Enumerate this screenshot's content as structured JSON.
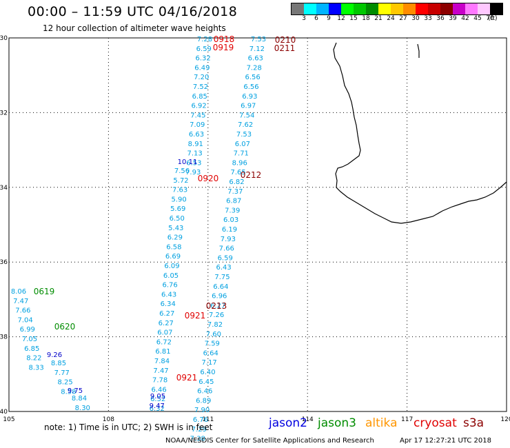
{
  "title": "00:00 – 11:59 UTC 04/16/2018",
  "subtitle": "12 hour collection of altimeter wave heights",
  "legend": {
    "labels": [
      "3",
      "6",
      "9",
      "12",
      "15",
      "18",
      "21",
      "24",
      "27",
      "30",
      "33",
      "36",
      "39",
      "42",
      "45",
      "70"
    ],
    "unit": "(ft)",
    "colors": [
      "#777777",
      "#00ffff",
      "#00b4ff",
      "#0000ff",
      "#00ff00",
      "#00c800",
      "#008c00",
      "#ffff00",
      "#ffc800",
      "#ff8c00",
      "#ff0000",
      "#c80000",
      "#8c0000",
      "#c800c8",
      "#ff78ff",
      "#ffc8ff",
      "#000000"
    ]
  },
  "axes": {
    "lat_labels": [
      "-30",
      "-32",
      "-34",
      "-36",
      "-38",
      "-40"
    ],
    "lon_labels": [
      "105",
      "108",
      "111",
      "114",
      "117",
      "120"
    ],
    "lat_values": [
      -30,
      -32,
      -34,
      -36,
      -38,
      -40
    ],
    "lon_values": [
      105,
      108,
      111,
      114,
      117,
      120
    ]
  },
  "tracks": [
    {
      "color": "#00a0e0",
      "values": [
        "7.28",
        "6.59",
        "6.32",
        "6.49",
        "7.20",
        "7.52",
        "6.85",
        "6.92",
        "7.45",
        "7.09",
        "6.63",
        "8.91",
        "7.13",
        "6.53",
        "7.93"
      ]
    },
    {
      "color": "#0000c8",
      "values": [
        "10.11"
      ]
    },
    {
      "color": "#00a0e0",
      "values": [
        "7.56",
        "5.72",
        "7.63",
        "5.90",
        "5.69",
        "6.50",
        "5.43",
        "6.29",
        "6.58",
        "6.69",
        "6.09",
        "6.05",
        "6.76",
        "6.43",
        "6.34",
        "6.27",
        "6.27",
        "6.07",
        "6.72",
        "6.81",
        "7.84",
        "7.47",
        "7.78",
        "6.46",
        "6.52",
        "6.32"
      ]
    },
    {
      "color": "#0000c8",
      "values": [
        "9.05",
        "9.47"
      ]
    },
    {
      "color": "#00a0e0",
      "values": [
        "7.53",
        "7.12",
        "6.63",
        "7.28",
        "6.56",
        "6.56",
        "6.93",
        "6.97",
        "7.54",
        "7.62",
        "7.53",
        "6.07",
        "7.71",
        "8.96",
        "7.65",
        "6.82",
        "7.37",
        "6.87",
        "7.39",
        "6.03",
        "6.19",
        "7.93",
        "7.66",
        "6.59",
        "6.43",
        "7.75",
        "6.64",
        "6.96",
        "6.27",
        "7.26",
        "7.82",
        "7.60",
        "7.59",
        "6.64",
        "7.17",
        "6.40",
        "6.45",
        "6.46",
        "6.89",
        "7.90",
        "6.76",
        "7.29",
        "7.38"
      ]
    },
    {
      "color": "#00a0e0",
      "values": [
        "8.06",
        "7.47",
        "7.66",
        "7.04",
        "6.99",
        "7.05",
        "6.85",
        "8.22",
        "8.33"
      ]
    },
    {
      "color": "#0000c8",
      "values": [
        "9.26"
      ]
    },
    {
      "color": "#00a0e0",
      "values": [
        "8.85",
        "7.77",
        "8.25",
        "8.58"
      ]
    },
    {
      "color": "#0000c8",
      "values": [
        "9.75"
      ]
    },
    {
      "color": "#00a0e0",
      "values": [
        "8.84",
        "8.30"
      ]
    }
  ],
  "time_labels": [
    {
      "text": "0918",
      "color": "#e00000"
    },
    {
      "text": "0919",
      "color": "#e00000"
    },
    {
      "text": "0920",
      "color": "#e00000"
    },
    {
      "text": "0921",
      "color": "#e00000"
    },
    {
      "text": "0921",
      "color": "#e00000"
    },
    {
      "text": "0210",
      "color": "#8c0000"
    },
    {
      "text": "0211",
      "color": "#8c0000"
    },
    {
      "text": "0212",
      "color": "#8c0000"
    },
    {
      "text": "0213",
      "color": "#8c0000"
    },
    {
      "text": "0619",
      "color": "#008c00"
    },
    {
      "text": "0620",
      "color": "#008c00"
    }
  ],
  "note": "note: 1) Time is in UTC; 2) SWH is in feet",
  "satellites": [
    {
      "name": "jason2",
      "color": "#0000e0"
    },
    {
      "name": "jason3",
      "color": "#008c00"
    },
    {
      "name": "altika",
      "color": "#ff9600"
    },
    {
      "name": "cryosat",
      "color": "#e00000"
    },
    {
      "name": "s3a",
      "color": "#8c0000"
    }
  ],
  "credit": "NOAA/NESDIS Center for Satellite Applications and Research",
  "timestamp": "Apr 17 12:27:21 UTC 2018"
}
